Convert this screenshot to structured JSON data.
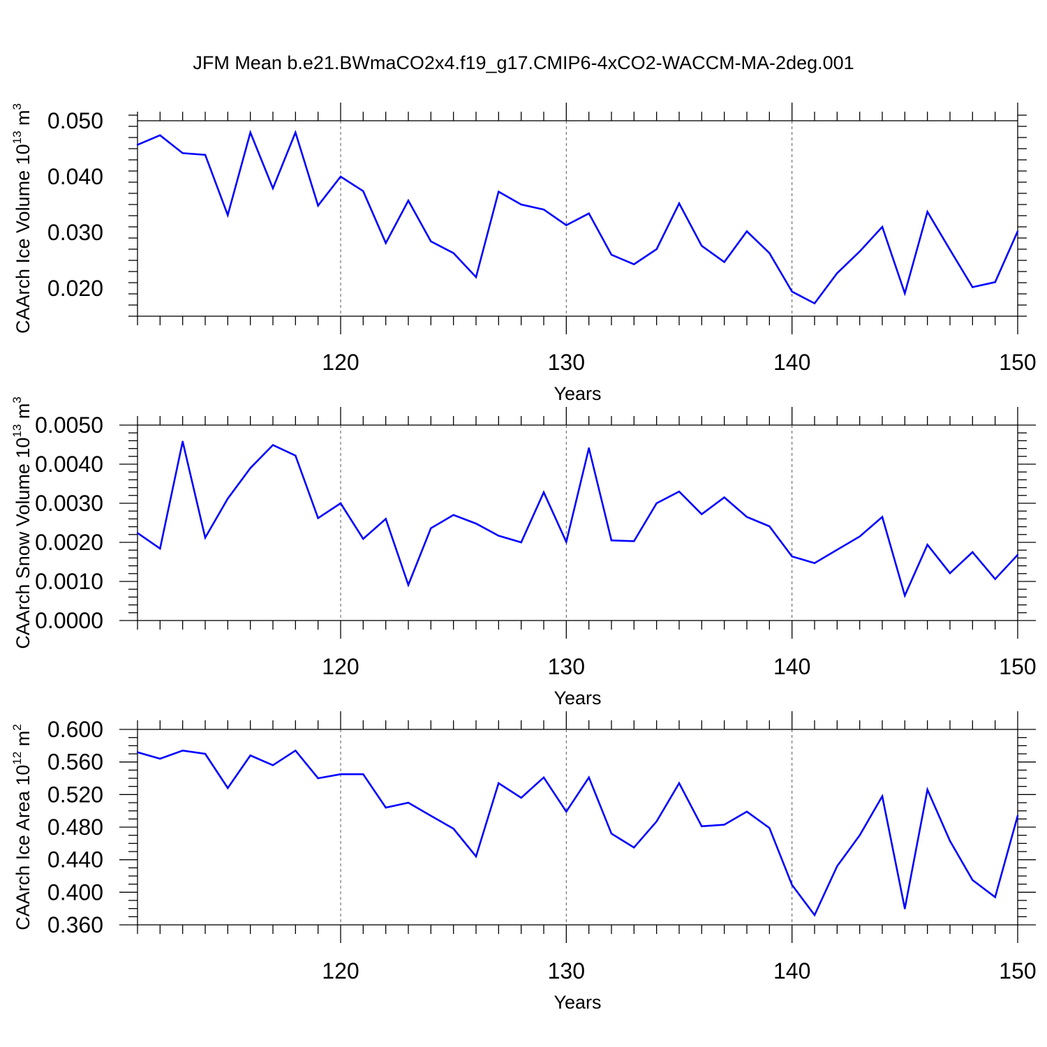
{
  "title": "JFM Mean b.e21.BWmaCO2x4.f19_g17.CMIP6-4xCO2-WACCM-MA-2deg.001",
  "colors": {
    "series": "#0000ff",
    "axes": "#000000",
    "grid": "#555555",
    "background": "#ffffff"
  },
  "chart_data": [
    {
      "type": "line",
      "title": "JFM Mean b.e21.BWmaCO2x4.f19_g17.CMIP6-4xCO2-WACCM-MA-2deg.001",
      "xlabel": "Years",
      "ylabel": {
        "text": "CAArch Ice Volume 10",
        "sup": "13",
        "unit": " m",
        "unit_sup": "3"
      },
      "xlim": [
        111,
        150
      ],
      "ylim": [
        0.015,
        0.05
      ],
      "xticks": [
        120,
        130,
        140,
        150
      ],
      "xtick_labels": [
        "120",
        "130",
        "140",
        "150"
      ],
      "yticks": [
        0.02,
        0.03,
        0.04,
        0.05
      ],
      "ytick_labels": [
        "0.020",
        "0.030",
        "0.040",
        "0.050"
      ],
      "y_minor_step": 0.002,
      "grid": "vertical dashed at major x ticks",
      "x": [
        111,
        112,
        113,
        114,
        115,
        116,
        117,
        118,
        119,
        120,
        121,
        122,
        123,
        124,
        125,
        126,
        127,
        128,
        129,
        130,
        131,
        132,
        133,
        134,
        135,
        136,
        137,
        138,
        139,
        140,
        141,
        142,
        143,
        144,
        145,
        146,
        147,
        148,
        149,
        150
      ],
      "series": [
        {
          "values": [
            0.0457,
            0.0474,
            0.0442,
            0.0439,
            0.0331,
            0.0479,
            0.0379,
            0.0479,
            0.0348,
            0.04,
            0.0374,
            0.0281,
            0.0357,
            0.0284,
            0.0263,
            0.022,
            0.0373,
            0.035,
            0.0341,
            0.0313,
            0.0334,
            0.026,
            0.0243,
            0.027,
            0.0352,
            0.0276,
            0.0247,
            0.0302,
            0.0263,
            0.0194,
            0.0173,
            0.0227,
            0.0266,
            0.031,
            0.0191,
            0.0337,
            0.0269,
            0.0202,
            0.0211,
            0.0302
          ]
        }
      ]
    },
    {
      "type": "line",
      "xlabel": "Years",
      "ylabel": {
        "text": "CAArch Snow Volume 10",
        "sup": "13",
        "unit": " m",
        "unit_sup": "3"
      },
      "xlim": [
        111,
        150
      ],
      "ylim": [
        0.0,
        0.005
      ],
      "xticks": [
        120,
        130,
        140,
        150
      ],
      "xtick_labels": [
        "120",
        "130",
        "140",
        "150"
      ],
      "yticks": [
        0.0,
        0.001,
        0.002,
        0.003,
        0.004,
        0.005
      ],
      "ytick_labels": [
        "0.0000",
        "0.0010",
        "0.0020",
        "0.0030",
        "0.0040",
        "0.0050"
      ],
      "y_minor_step": 0.0002,
      "grid": "vertical dashed at major x ticks",
      "x": [
        111,
        112,
        113,
        114,
        115,
        116,
        117,
        118,
        119,
        120,
        121,
        122,
        123,
        124,
        125,
        126,
        127,
        128,
        129,
        130,
        131,
        132,
        133,
        134,
        135,
        136,
        137,
        138,
        139,
        140,
        141,
        142,
        143,
        144,
        145,
        146,
        147,
        148,
        149,
        150
      ],
      "series": [
        {
          "values": [
            0.00224,
            0.00184,
            0.00458,
            0.00212,
            0.00312,
            0.0039,
            0.00449,
            0.00422,
            0.00262,
            0.003,
            0.00209,
            0.0026,
            0.00091,
            0.00236,
            0.0027,
            0.00248,
            0.00217,
            0.002,
            0.00328,
            0.00201,
            0.00441,
            0.00205,
            0.00203,
            0.003,
            0.0033,
            0.00272,
            0.00315,
            0.00265,
            0.00241,
            0.00164,
            0.00147,
            0.00181,
            0.00215,
            0.00265,
            0.00064,
            0.00194,
            0.00121,
            0.00175,
            0.00106,
            0.00168
          ]
        }
      ]
    },
    {
      "type": "line",
      "xlabel": "Years",
      "ylabel": {
        "text": "CAArch Ice Area 10",
        "sup": "12",
        "unit": " m",
        "unit_sup": "2"
      },
      "xlim": [
        111,
        150
      ],
      "ylim": [
        0.36,
        0.6
      ],
      "xticks": [
        120,
        130,
        140,
        150
      ],
      "xtick_labels": [
        "120",
        "130",
        "140",
        "150"
      ],
      "yticks": [
        0.36,
        0.4,
        0.44,
        0.48,
        0.52,
        0.56,
        0.6
      ],
      "ytick_labels": [
        "0.360",
        "0.400",
        "0.440",
        "0.480",
        "0.520",
        "0.560",
        "0.600"
      ],
      "y_minor_step": 0.01,
      "grid": "vertical dashed at major x ticks",
      "x": [
        111,
        112,
        113,
        114,
        115,
        116,
        117,
        118,
        119,
        120,
        121,
        122,
        123,
        124,
        125,
        126,
        127,
        128,
        129,
        130,
        131,
        132,
        133,
        134,
        135,
        136,
        137,
        138,
        139,
        140,
        141,
        142,
        143,
        144,
        145,
        146,
        147,
        148,
        149,
        150
      ],
      "series": [
        {
          "values": [
            0.572,
            0.564,
            0.574,
            0.57,
            0.528,
            0.568,
            0.556,
            0.574,
            0.54,
            0.545,
            0.545,
            0.504,
            0.51,
            0.494,
            0.478,
            0.444,
            0.534,
            0.516,
            0.541,
            0.499,
            0.541,
            0.472,
            0.455,
            0.487,
            0.534,
            0.481,
            0.483,
            0.499,
            0.479,
            0.409,
            0.372,
            0.432,
            0.47,
            0.518,
            0.38,
            0.526,
            0.463,
            0.415,
            0.394,
            0.494
          ]
        }
      ]
    }
  ]
}
